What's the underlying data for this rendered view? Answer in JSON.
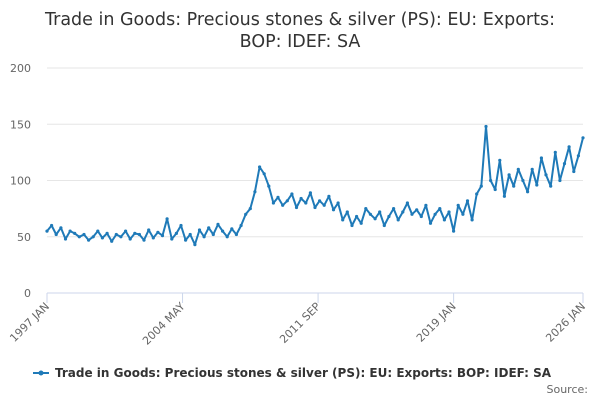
{
  "chart_data": {
    "type": "line",
    "title_lines": [
      "Trade in Goods: Precious stones & silver (PS): EU: Exports:",
      "BOP: IDEF: SA"
    ],
    "ylim": [
      0,
      200
    ],
    "y_ticks": [
      "0",
      "50",
      "100",
      "150",
      "200"
    ],
    "x_tick_labels": [
      "1997 JAN",
      "2004 MAY",
      "2011 SEP",
      "2019 JAN",
      "2026 JAN"
    ],
    "grid": true,
    "legend_position": "bottom",
    "series": [
      {
        "name": "Trade in Goods: Precious stones & silver (PS): EU: Exports: BOP: IDEF: SA",
        "color": "#1f7ab8",
        "x": [
          "1997-01",
          "1997-04",
          "1997-07",
          "1997-10",
          "1998-01",
          "1998-04",
          "1998-07",
          "1998-10",
          "1999-01",
          "1999-04",
          "1999-07",
          "1999-10",
          "2000-01",
          "2000-04",
          "2000-07",
          "2000-10",
          "2001-01",
          "2001-04",
          "2001-07",
          "2001-10",
          "2002-01",
          "2002-04",
          "2002-07",
          "2002-10",
          "2003-01",
          "2003-04",
          "2003-07",
          "2003-10",
          "2004-01",
          "2004-04",
          "2004-07",
          "2004-10",
          "2005-01",
          "2005-04",
          "2005-07",
          "2005-10",
          "2006-01",
          "2006-04",
          "2006-07",
          "2006-10",
          "2007-01",
          "2007-04",
          "2007-07",
          "2007-10",
          "2008-01",
          "2008-04",
          "2008-07",
          "2008-10",
          "2009-01",
          "2009-04",
          "2009-07",
          "2009-10",
          "2010-01",
          "2010-04",
          "2010-07",
          "2010-10",
          "2011-01",
          "2011-04",
          "2011-07",
          "2011-10",
          "2012-01",
          "2012-04",
          "2012-07",
          "2012-10",
          "2013-01",
          "2013-04",
          "2013-07",
          "2013-10",
          "2014-01",
          "2014-04",
          "2014-07",
          "2014-10",
          "2015-01",
          "2015-04",
          "2015-07",
          "2015-10",
          "2016-01",
          "2016-04",
          "2016-07",
          "2016-10",
          "2017-01",
          "2017-04",
          "2017-07",
          "2017-10",
          "2018-01",
          "2018-04",
          "2018-07",
          "2018-10",
          "2019-01",
          "2019-04",
          "2019-07",
          "2019-10",
          "2020-01",
          "2020-04",
          "2020-07",
          "2020-10",
          "2021-01",
          "2021-04",
          "2021-07",
          "2021-10",
          "2022-01",
          "2022-04",
          "2022-07",
          "2022-10",
          "2023-01",
          "2023-04",
          "2023-07",
          "2023-10",
          "2024-01",
          "2024-04",
          "2024-07",
          "2024-10",
          "2025-01",
          "2025-04",
          "2025-07",
          "2025-10",
          "2026-01"
        ],
        "values": [
          55,
          60,
          52,
          58,
          48,
          55,
          53,
          50,
          52,
          47,
          50,
          55,
          49,
          53,
          46,
          52,
          50,
          55,
          48,
          53,
          52,
          47,
          56,
          49,
          54,
          51,
          66,
          48,
          53,
          60,
          47,
          52,
          43,
          56,
          50,
          58,
          52,
          61,
          55,
          50,
          57,
          52,
          60,
          70,
          75,
          90,
          112,
          106,
          95,
          80,
          85,
          78,
          82,
          88,
          76,
          84,
          80,
          89,
          76,
          82,
          78,
          86,
          74,
          80,
          65,
          72,
          60,
          68,
          62,
          75,
          70,
          66,
          72,
          60,
          68,
          75,
          65,
          72,
          80,
          70,
          74,
          68,
          78,
          62,
          70,
          75,
          65,
          72,
          55,
          78,
          70,
          82,
          65,
          88,
          95,
          148,
          100,
          92,
          118,
          86,
          105,
          95,
          110,
          100,
          90,
          110,
          96,
          120,
          105,
          95,
          125,
          100,
          115,
          130,
          108,
          122,
          138
        ]
      }
    ]
  },
  "credits": "Source:"
}
